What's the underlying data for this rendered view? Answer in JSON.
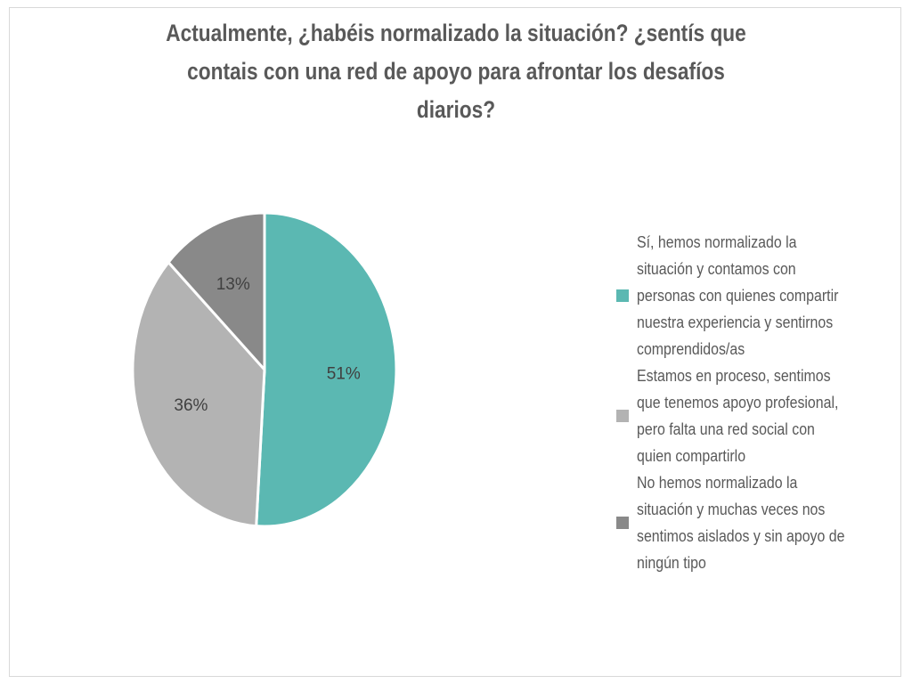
{
  "chart_data": {
    "type": "pie",
    "title_lines": [
      "Actualmente, ¿habéis normalizado la situación? ¿sentís que",
      "contais con una red de apoyo para afrontar los desafíos",
      "diarios?"
    ],
    "slices": [
      {
        "name": "Sí, hemos normalizado la situación y contamos con personas con quienes compartir nuestra experiencia y sentirnos comprendidos/as",
        "value": 51,
        "label": "51%",
        "color": "#5BB8B2",
        "legend_lines": [
          "Sí, hemos normalizado la",
          "situación y contamos con",
          "personas con quienes compartir",
          "nuestra experiencia y sentirnos",
          "comprendidos/as"
        ]
      },
      {
        "name": "Estamos en proceso, sentimos que tenemos apoyo profesional, pero falta una red social con quien compartirlo",
        "value": 36,
        "label": "36%",
        "color": "#B3B3B3",
        "legend_lines": [
          "Estamos en proceso, sentimos",
          "que tenemos apoyo profesional,",
          "pero falta una red social con",
          "quien compartirlo"
        ]
      },
      {
        "name": "No hemos normalizado la situación y muchas veces nos sentimos aislados y sin apoyo de ningún tipo",
        "value": 13,
        "label": "13%",
        "color": "#898989",
        "legend_lines": [
          "No hemos normalizado la",
          "situación y muchas veces nos",
          "sentimos aislados y sin apoyo de",
          "ningún tipo"
        ]
      }
    ],
    "legend_position": "right",
    "start_angle": "top",
    "direction": "clockwise"
  }
}
